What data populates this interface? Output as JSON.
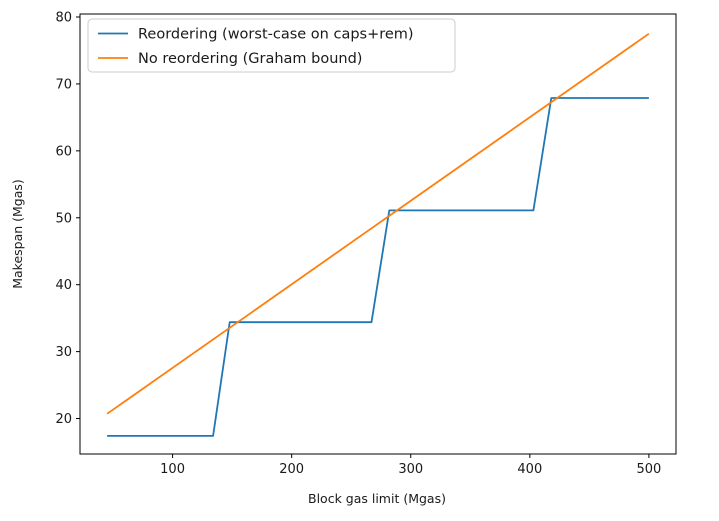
{
  "chart_data": {
    "type": "line",
    "title": "",
    "xlabel": "Block gas limit (Mgas)",
    "ylabel": "Makespan (Mgas)",
    "xlim": [
      22.25,
      522.75
    ],
    "ylim": [
      14.7,
      80.45
    ],
    "xticks": [
      100,
      200,
      300,
      400,
      500
    ],
    "yticks": [
      20,
      30,
      40,
      50,
      60,
      70,
      80
    ],
    "grid": false,
    "legend_position": "upper-left",
    "background": "#ffffff",
    "spine_color": "#000000",
    "series": [
      {
        "name": "Reordering (worst-case on caps+rem)",
        "color": "#1f77b4",
        "style": "step-like polyline",
        "points": [
          [
            45,
            17.4
          ],
          [
            134,
            17.4
          ],
          [
            148,
            34.4
          ],
          [
            267,
            34.4
          ],
          [
            282,
            51.1
          ],
          [
            403,
            51.1
          ],
          [
            418,
            67.9
          ],
          [
            500,
            67.9
          ]
        ]
      },
      {
        "name": "No reordering (Graham bound)",
        "color": "#ff7f0e",
        "style": "straight line",
        "points": [
          [
            45,
            20.7
          ],
          [
            500,
            77.5
          ]
        ]
      }
    ]
  }
}
